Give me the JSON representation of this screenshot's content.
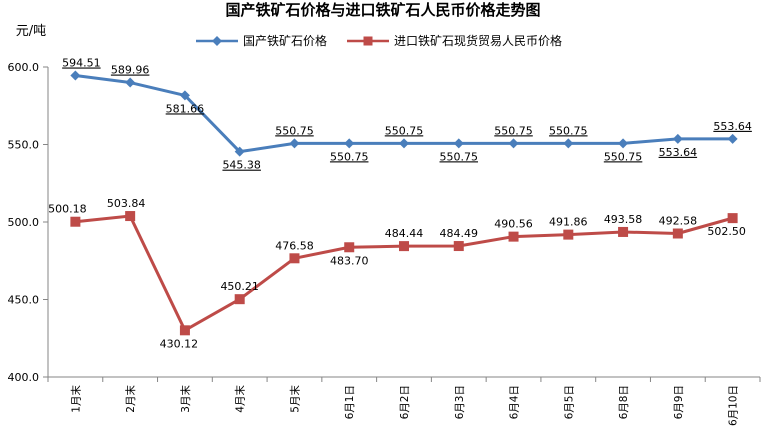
{
  "chart_data": {
    "type": "line",
    "title": "国产铁矿石价格与进口铁矿石人民币价格走势图",
    "ylabel": "元/吨",
    "categories": [
      "1月末",
      "2月末",
      "3月末",
      "4月末",
      "5月末",
      "6月1日",
      "6月2日",
      "6月3日",
      "6月4日",
      "6月5日",
      "6月8日",
      "6月9日",
      "6月10日"
    ],
    "ylim": [
      400,
      600
    ],
    "yticks": [
      "400.0",
      "450.0",
      "500.0",
      "550.0",
      "600.0"
    ],
    "series": [
      {
        "name": "国产铁矿石价格",
        "color": "#4A7EBB",
        "marker": "diamond",
        "values": [
          594.51,
          589.96,
          581.66,
          545.38,
          550.75,
          550.75,
          550.75,
          550.75,
          550.75,
          550.75,
          550.75,
          553.64,
          553.64
        ],
        "labels": [
          "594.51",
          "589.96",
          "581.66",
          "545.38",
          "550.75",
          "550.75",
          "550.75",
          "550.75",
          "550.75",
          "550.75",
          "550.75",
          "553.64",
          "553.64"
        ]
      },
      {
        "name": "进口铁矿石现货贸易人民币价格",
        "color": "#BE4B48",
        "marker": "square",
        "values": [
          500.18,
          503.84,
          430.12,
          450.21,
          476.58,
          483.7,
          484.44,
          484.49,
          490.56,
          491.86,
          493.58,
          492.58,
          502.5
        ],
        "labels": [
          "500.18",
          "503.84",
          "430.12",
          "450.21",
          "476.58",
          "483.70",
          "484.44",
          "484.49",
          "490.56",
          "491.86",
          "493.58",
          "492.58",
          "502.50"
        ]
      }
    ],
    "grid": false,
    "legend_position": "top"
  }
}
